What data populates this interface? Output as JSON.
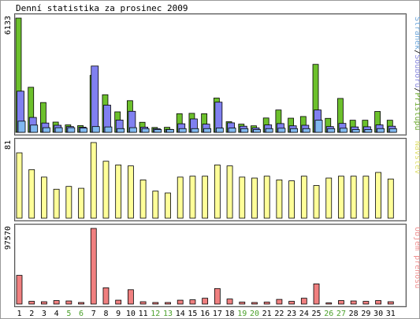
{
  "chart_data": {
    "type": "bar",
    "title": "Denní statistika za prosinec 2009",
    "categories": [
      "1",
      "2",
      "3",
      "4",
      "5",
      "6",
      "7",
      "8",
      "9",
      "10",
      "11",
      "12",
      "13",
      "14",
      "15",
      "16",
      "17",
      "18",
      "19",
      "20",
      "21",
      "22",
      "23",
      "24",
      "25",
      "26",
      "27",
      "28",
      "29",
      "30",
      "31"
    ],
    "weekend_days": [
      "5",
      "6",
      "12",
      "13",
      "19",
      "20",
      "26",
      "27"
    ],
    "panels": [
      {
        "ymax_label": "6133",
        "ymax": 6133,
        "legend": [
          {
            "text": "Stránek",
            "color": "#6fa8dc"
          },
          {
            "text": "/",
            "color": "#000000"
          },
          {
            "text": "Souborů",
            "color": "#8a8adf"
          },
          {
            "text": "/",
            "color": "#000000"
          },
          {
            "text": "Přístupů",
            "color": "#6aa82a"
          }
        ],
        "series": [
          {
            "name": "Přístupů",
            "color": "#6cc02c",
            "values": [
              6133,
              2420,
              1600,
              550,
              400,
              360,
              3060,
              2020,
              1100,
              1700,
              540,
              260,
              270,
              1000,
              1020,
              1000,
              1840,
              570,
              440,
              350,
              770,
              1200,
              760,
              850,
              3650,
              750,
              1820,
              650,
              650,
              1120,
              650
            ]
          },
          {
            "name": "Souborů",
            "color": "#8080f0",
            "values": [
              2210,
              800,
              500,
              380,
              310,
              280,
              3560,
              1460,
              660,
              1130,
              280,
              200,
              160,
              460,
              720,
              440,
              1620,
              510,
              330,
              240,
              400,
              470,
              350,
              380,
              1200,
              310,
              480,
              290,
              300,
              400,
              330
            ]
          },
          {
            "name": "Stránek",
            "color": "#80b8f0",
            "values": [
              600,
              390,
              250,
              250,
              250,
              230,
              310,
              290,
              200,
              250,
              200,
              150,
              150,
              200,
              200,
              200,
              230,
              230,
              200,
              150,
              200,
              220,
              200,
              200,
              650,
              200,
              220,
              150,
              150,
              200,
              200
            ]
          }
        ]
      },
      {
        "ymax_label": "81",
        "ymax": 81,
        "legend": [
          {
            "text": "Návštěv",
            "color": "#e0e070"
          }
        ],
        "series": [
          {
            "name": "Návštěv",
            "color": "#ffff99",
            "values": [
              70,
              52,
              44,
              31,
              34,
              32,
              81,
              61,
              57,
              56,
              41,
              29,
              27,
              44,
              45,
              45,
              57,
              56,
              44,
              43,
              45,
              41,
              40,
              45,
              35,
              43,
              45,
              45,
              45,
              49,
              42
            ]
          }
        ]
      },
      {
        "ymax_label": "97570",
        "ymax": 97570,
        "legend": [
          {
            "text": "Objem přenosu",
            "color": "#f09090"
          }
        ],
        "series": [
          {
            "name": "Objem přenosu",
            "color": "#f08080",
            "values": [
              37000,
              3500,
              3000,
              4500,
              4000,
              2000,
              97570,
              21000,
              5000,
              18500,
              3000,
              2000,
              2000,
              5000,
              5500,
              7500,
              20000,
              6500,
              2500,
              2000,
              2500,
              6000,
              3500,
              7500,
              26000,
              1500,
              4500,
              4000,
              3500,
              4500,
              3000
            ]
          }
        ]
      }
    ]
  }
}
